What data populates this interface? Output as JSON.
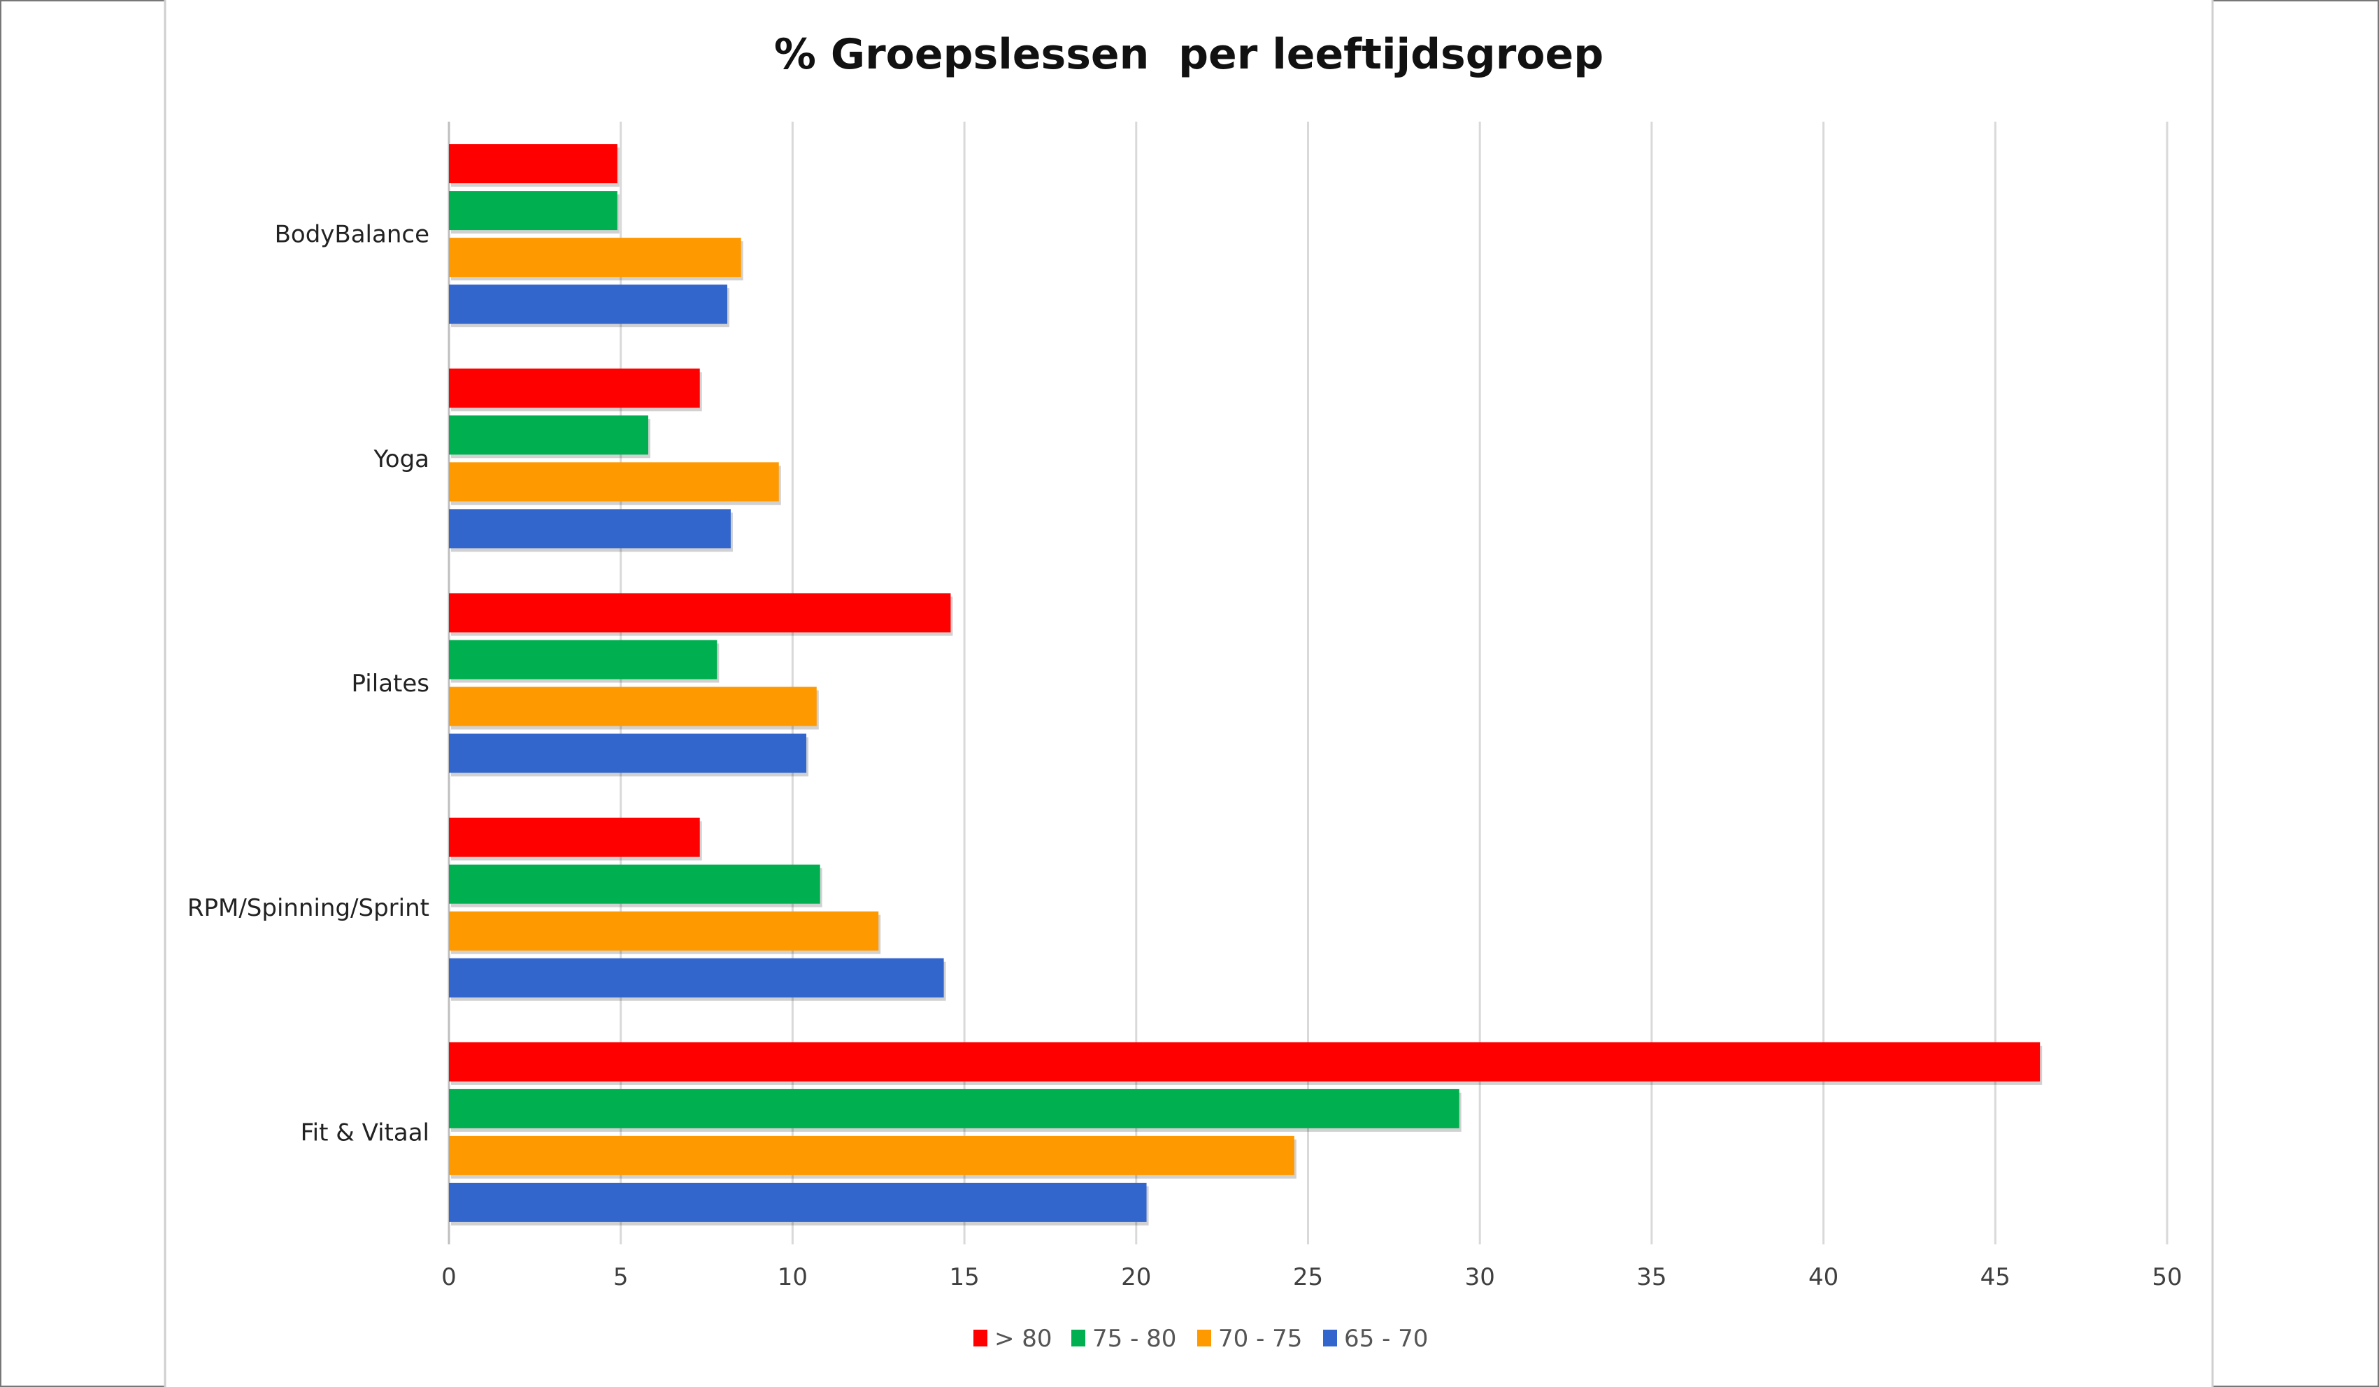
{
  "chart_data": {
    "type": "bar",
    "orientation": "horizontal",
    "title": "% Groepslessen  per leeftijdsgroep",
    "xlabel": "",
    "ylabel": "",
    "xlim": [
      0,
      50
    ],
    "x_ticks": [
      "0",
      "5",
      "10",
      "15",
      "20",
      "25",
      "30",
      "35",
      "40",
      "45",
      "50"
    ],
    "grid": "vertical",
    "legend_position": "bottom",
    "categories": [
      "BodyBalance",
      "Yoga",
      "Pilates",
      "RPM/Spinning/Sprint",
      "Fit & Vitaal"
    ],
    "series": [
      {
        "name": "> 80",
        "color": "#ff0000",
        "values": [
          4.9,
          7.3,
          14.6,
          7.3,
          46.3
        ]
      },
      {
        "name": "75 - 80",
        "color": "#00b050",
        "values": [
          4.9,
          5.8,
          7.8,
          10.8,
          29.4
        ]
      },
      {
        "name": "70 - 75",
        "color": "#ff9900",
        "values": [
          8.5,
          9.6,
          10.7,
          12.5,
          24.6
        ]
      },
      {
        "name": "65 - 70",
        "color": "#3366cc",
        "values": [
          8.1,
          8.2,
          10.4,
          14.4,
          20.3
        ]
      }
    ]
  }
}
